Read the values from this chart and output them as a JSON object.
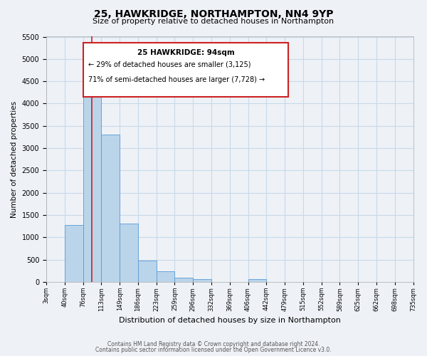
{
  "title": "25, HAWKRIDGE, NORTHAMPTON, NN4 9YP",
  "subtitle": "Size of property relative to detached houses in Northampton",
  "xlabel": "Distribution of detached houses by size in Northampton",
  "ylabel": "Number of detached properties",
  "bin_labels": [
    "3sqm",
    "40sqm",
    "76sqm",
    "113sqm",
    "149sqm",
    "186sqm",
    "223sqm",
    "259sqm",
    "296sqm",
    "332sqm",
    "369sqm",
    "406sqm",
    "442sqm",
    "479sqm",
    "515sqm",
    "552sqm",
    "589sqm",
    "625sqm",
    "662sqm",
    "698sqm",
    "735sqm"
  ],
  "bar_values": [
    0,
    1270,
    4300,
    3300,
    1300,
    480,
    235,
    100,
    65,
    0,
    0,
    65,
    0,
    0,
    0,
    0,
    0,
    0,
    0,
    0
  ],
  "bar_color": "#bad4ea",
  "bar_edge_color": "#5b9bd5",
  "vline_color": "#cc2222",
  "annotation_title": "25 HAWKRIDGE: 94sqm",
  "annotation_line1": "← 29% of detached houses are smaller (3,125)",
  "annotation_line2": "71% of semi-detached houses are larger (7,728) →",
  "annotation_box_facecolor": "#ffffff",
  "annotation_box_edgecolor": "#cc2222",
  "ylim": [
    0,
    5500
  ],
  "yticks": [
    0,
    500,
    1000,
    1500,
    2000,
    2500,
    3000,
    3500,
    4000,
    4500,
    5000,
    5500
  ],
  "grid_color": "#c8d8e8",
  "background_color": "#eef2f7",
  "footnote1": "Contains HM Land Registry data © Crown copyright and database right 2024.",
  "footnote2": "Contains public sector information licensed under the Open Government Licence v3.0."
}
